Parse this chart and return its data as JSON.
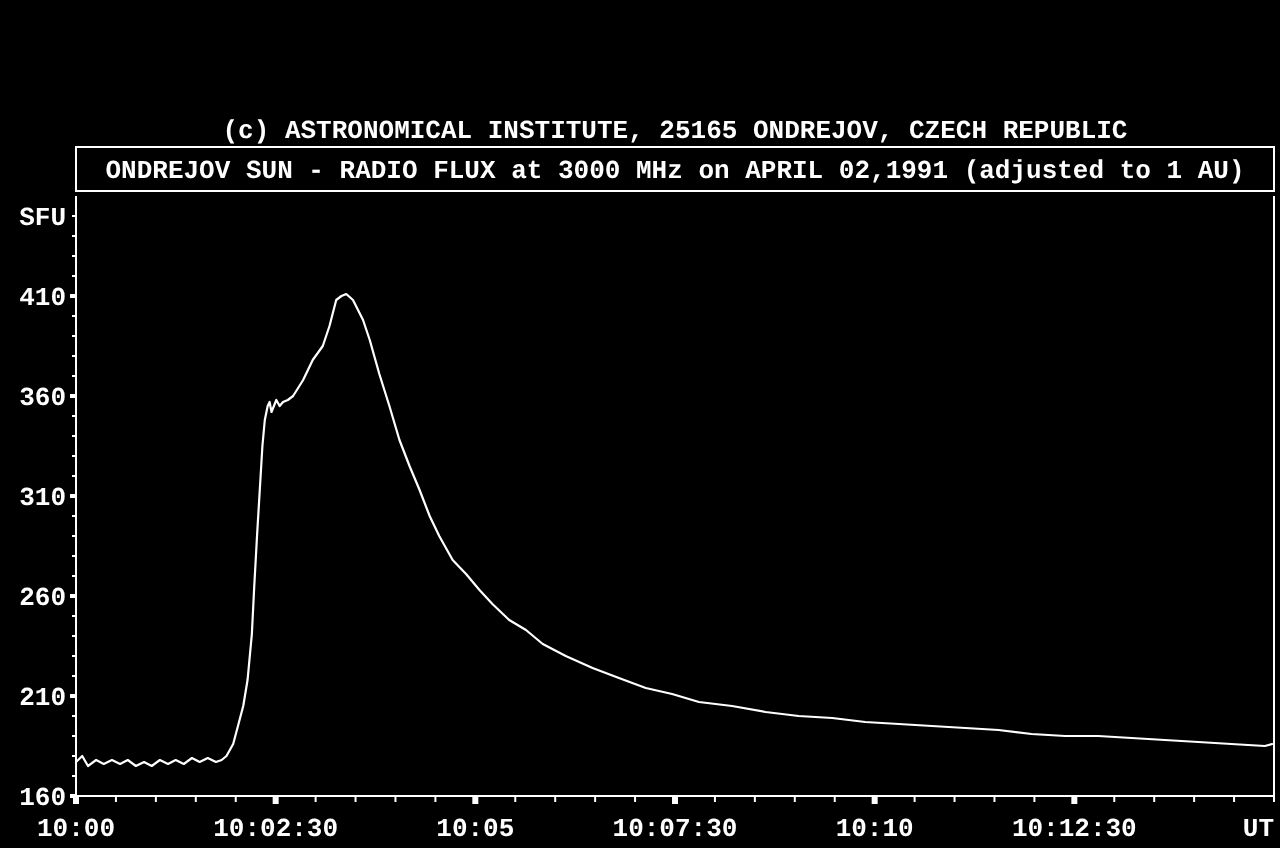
{
  "chart_data": {
    "type": "line",
    "title": "ONDREJOV SUN - RADIO FLUX at 3000 MHz on APRIL 02,1991 (adjusted to 1 AU)",
    "annotations": [
      "(c) ASTRONOMICAL INSTITUTE, 25165 ONDREJOV, CZECH REPUBLIC"
    ],
    "xlabel": "UT",
    "ylabel": "SFU",
    "x": [
      10.0,
      10.0013,
      10.0025,
      10.0042,
      10.0058,
      10.0075,
      10.0092,
      10.0108,
      10.0125,
      10.0142,
      10.0158,
      10.0175,
      10.0192,
      10.0208,
      10.0225,
      10.0242,
      10.0258,
      10.0275,
      10.0292,
      10.0304,
      10.0314,
      10.0328,
      10.0338,
      10.0349,
      10.0358,
      10.0367,
      10.0372,
      10.0378,
      10.0383,
      10.0389,
      10.0394,
      10.04,
      10.0404,
      10.0408,
      10.0418,
      10.0425,
      10.0432,
      10.0442,
      10.0453,
      10.0474,
      10.0494,
      10.0515,
      10.0529,
      10.0543,
      10.0554,
      10.0564,
      10.0578,
      10.0599,
      10.0613,
      10.0633,
      10.0654,
      10.0675,
      10.0696,
      10.0717,
      10.0738,
      10.0758,
      10.0786,
      10.0814,
      10.0842,
      10.0869,
      10.0904,
      10.0939,
      10.0974,
      10.1022,
      10.1078,
      10.1133,
      10.1189,
      10.1244,
      10.13,
      10.1369,
      10.1439,
      10.1508,
      10.1578,
      10.1647,
      10.1717,
      10.1786,
      10.1856,
      10.1925,
      10.1994,
      10.2064,
      10.2133,
      10.2203,
      10.2272,
      10.2342,
      10.2411,
      10.2481,
      10.2496
    ],
    "series": [
      {
        "color": "#ffffff",
        "values": [
          177,
          180,
          175,
          178,
          176,
          178,
          176,
          178,
          175,
          177,
          175,
          178,
          176,
          178,
          176,
          179,
          177,
          179,
          177,
          178,
          180,
          186,
          195,
          205,
          218,
          241,
          265,
          291,
          311,
          335,
          348,
          355,
          357,
          352,
          358,
          355,
          357,
          358,
          360,
          368,
          378,
          385,
          395,
          408,
          410,
          411,
          408,
          398,
          388,
          371,
          355,
          338,
          325,
          313,
          300,
          290,
          278,
          271,
          263,
          256,
          248,
          243,
          236,
          230,
          224,
          219,
          214,
          211,
          207,
          205,
          202,
          200,
          199,
          197,
          196,
          195,
          194,
          193,
          191,
          190,
          190,
          189,
          188,
          187,
          186,
          185,
          186
        ]
      }
    ],
    "xlim": [
      10.0,
      10.25
    ],
    "ylim": [
      160,
      460
    ],
    "xticks": [
      {
        "value": 10.0,
        "label": "10:00"
      },
      {
        "value": 10.0083333,
        "label": null
      },
      {
        "value": 10.0166667,
        "label": null
      },
      {
        "value": 10.025,
        "label": null
      },
      {
        "value": 10.0333333,
        "label": null
      },
      {
        "value": 10.0416667,
        "label": "10:02:30"
      },
      {
        "value": 10.05,
        "label": null
      },
      {
        "value": 10.0583333,
        "label": null
      },
      {
        "value": 10.0666667,
        "label": null
      },
      {
        "value": 10.075,
        "label": null
      },
      {
        "value": 10.0833333,
        "label": "10:05"
      },
      {
        "value": 10.0916667,
        "label": null
      },
      {
        "value": 10.1,
        "label": null
      },
      {
        "value": 10.1083333,
        "label": null
      },
      {
        "value": 10.1166667,
        "label": null
      },
      {
        "value": 10.125,
        "label": "10:07:30"
      },
      {
        "value": 10.1333333,
        "label": null
      },
      {
        "value": 10.1416667,
        "label": null
      },
      {
        "value": 10.15,
        "label": null
      },
      {
        "value": 10.1583333,
        "label": null
      },
      {
        "value": 10.1666667,
        "label": "10:10"
      },
      {
        "value": 10.175,
        "label": null
      },
      {
        "value": 10.1833333,
        "label": null
      },
      {
        "value": 10.1916667,
        "label": null
      },
      {
        "value": 10.2,
        "label": null
      },
      {
        "value": 10.2083333,
        "label": "10:12:30"
      },
      {
        "value": 10.2166667,
        "label": null
      },
      {
        "value": 10.225,
        "label": null
      },
      {
        "value": 10.2333333,
        "label": null
      },
      {
        "value": 10.2416667,
        "label": null
      },
      {
        "value": 10.25,
        "label": null
      }
    ],
    "yticks": [
      160,
      {
        "value": 170,
        "label": null
      },
      {
        "value": 180,
        "label": null
      },
      {
        "value": 190,
        "label": null
      },
      {
        "value": 200,
        "label": null
      },
      210,
      {
        "value": 220,
        "label": null
      },
      {
        "value": 230,
        "label": null
      },
      {
        "value": 240,
        "label": null
      },
      {
        "value": 250,
        "label": null
      },
      260,
      {
        "value": 270,
        "label": null
      },
      {
        "value": 280,
        "label": null
      },
      {
        "value": 290,
        "label": null
      },
      {
        "value": 300,
        "label": null
      },
      310,
      {
        "value": 320,
        "label": null
      },
      {
        "value": 330,
        "label": null
      },
      {
        "value": 340,
        "label": null
      },
      {
        "value": 350,
        "label": null
      },
      360,
      {
        "value": 370,
        "label": null
      },
      {
        "value": 380,
        "label": null
      },
      {
        "value": 390,
        "label": null
      },
      {
        "value": 400,
        "label": null
      },
      410,
      {
        "value": 420,
        "label": null
      },
      {
        "value": 430,
        "label": null
      },
      {
        "value": 440,
        "label": null
      },
      {
        "value": 450,
        "label": null
      }
    ]
  }
}
